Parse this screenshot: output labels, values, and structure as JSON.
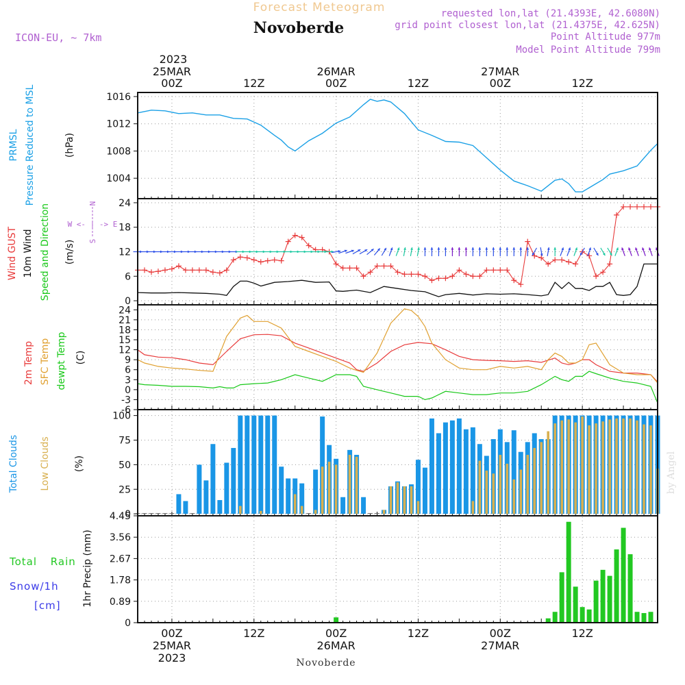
{
  "header": {
    "title": "Forecast Meteogram",
    "location": "Novoberde",
    "model": "ICON-EU, ~ 7km",
    "requested": "requested lon,lat (21.4393E, 42.6080N)",
    "gridpoint": "grid point closest lon,lat (21.4375E, 42.625N)",
    "point_alt": "Point Altitude 977m",
    "model_alt": "Model Point Altitude 799m",
    "footer": "Novoberde",
    "credit": "by Angel"
  },
  "colors": {
    "pressure": "#1aa0e6",
    "gust": "#e83a3a",
    "wind": "#111111",
    "arrows_blue": "#2a4ee8",
    "arrows_green": "#18c8a0",
    "arrows_purple": "#7a18c8",
    "temp": "#e83a3a",
    "sfc": "#e0a030",
    "dewpt": "#18c818",
    "total_clouds": "#1a96e6",
    "low_clouds": "#d8b050",
    "rain": "#22c822",
    "snow": "#3a3ae8",
    "label_purple": "#b060d0",
    "title_orange": "#f0c890"
  },
  "time_axis": {
    "top_year": "2023",
    "bottom_year": "2023",
    "ticks": [
      {
        "hour": 0,
        "label": "00Z",
        "date": "25MAR"
      },
      {
        "hour": 12,
        "label": "12Z",
        "date": ""
      },
      {
        "hour": 24,
        "label": "00Z",
        "date": "26MAR"
      },
      {
        "hour": 36,
        "label": "12Z",
        "date": ""
      },
      {
        "hour": 48,
        "label": "00Z",
        "date": "27MAR"
      },
      {
        "hour": 60,
        "label": "12Z",
        "date": ""
      }
    ],
    "range_hours": [
      -5,
      71
    ]
  },
  "panels": {
    "pressure": {
      "labels": [
        "PRMSL",
        "Pressure Reduced to MSL"
      ],
      "unit": "(hPa)",
      "ylim": [
        1001,
        1016.6
      ],
      "yticks": [
        1004,
        1008,
        1012,
        1016
      ]
    },
    "wind": {
      "labels": [
        "Wind GUST",
        "10m Wind",
        "Speed and Direction"
      ],
      "unit": "(m/s)",
      "compass": "W <- | -> E",
      "compass_n": "N",
      "compass_s": "S",
      "ylim": [
        -1,
        25
      ],
      "yticks": [
        0,
        6,
        12,
        18,
        24
      ]
    },
    "temp": {
      "labels": [
        "2m Temp",
        "SFC Temp",
        "dewpt Temp"
      ],
      "unit": "(C)",
      "ylim": [
        -6,
        25.5
      ],
      "yticks": [
        -6,
        -3,
        0,
        3,
        6,
        9,
        12,
        15,
        18,
        21,
        24
      ]
    },
    "clouds": {
      "labels": [
        "Total Clouds",
        "Low Clouds"
      ],
      "unit": "(%)",
      "ylim": [
        -2,
        106
      ],
      "yticks": [
        0,
        25,
        50,
        75,
        100
      ]
    },
    "precip": {
      "labels": [
        "Total Rain",
        "Snow/1h",
        "[cm]"
      ],
      "unit": "1hr Precip (mm)",
      "ylim": [
        0,
        4.45
      ],
      "yticks": [
        "0",
        "0.89",
        "1.78",
        "2.67",
        "3.56",
        "4.45"
      ]
    }
  },
  "chart_data": {
    "type": "line",
    "title": "Forecast Meteogram - Novoberde",
    "x_unit": "hours since 2023-03-25 00Z",
    "pressure": {
      "name": "PRMSL (hPa)",
      "x": [
        -5,
        -3,
        -1,
        1,
        3,
        5,
        7,
        9,
        11,
        13,
        15,
        16,
        17,
        18,
        20,
        22,
        24,
        26,
        28,
        29,
        30,
        31,
        32,
        34,
        36,
        38,
        40,
        42,
        44,
        46,
        48,
        50,
        52,
        54,
        56,
        57,
        58,
        59,
        60,
        61,
        62,
        63,
        64,
        66,
        68,
        70,
        71
      ],
      "y": [
        1013.6,
        1014.0,
        1013.9,
        1013.5,
        1013.6,
        1013.3,
        1013.3,
        1012.8,
        1012.7,
        1011.8,
        1010.3,
        1009.6,
        1008.6,
        1008.0,
        1009.5,
        1010.6,
        1012.1,
        1013.0,
        1014.8,
        1015.6,
        1015.3,
        1015.5,
        1015.2,
        1013.5,
        1011.1,
        1010.3,
        1009.4,
        1009.3,
        1008.8,
        1007.0,
        1005.2,
        1003.6,
        1002.9,
        1002.1,
        1003.7,
        1003.9,
        1003.2,
        1002.0,
        1002.0,
        1002.6,
        1003.2,
        1003.8,
        1004.6,
        1005.1,
        1005.8,
        1008.1,
        1009.1
      ]
    },
    "wind_gust": {
      "name": "Wind GUST (m/s)",
      "x": [
        -5,
        -4,
        -3,
        -2,
        -1,
        0,
        1,
        2,
        3,
        4,
        5,
        6,
        7,
        8,
        9,
        10,
        11,
        12,
        13,
        14,
        15,
        16,
        17,
        18,
        19,
        20,
        21,
        22,
        23,
        24,
        25,
        26,
        27,
        28,
        29,
        30,
        31,
        32,
        33,
        34,
        35,
        36,
        37,
        38,
        39,
        40,
        41,
        42,
        43,
        44,
        45,
        46,
        47,
        48,
        49,
        50,
        51,
        52,
        53,
        54,
        55,
        56,
        57,
        58,
        59,
        60,
        61,
        62,
        63,
        64,
        65,
        66,
        67,
        68,
        69,
        70,
        71
      ],
      "y": [
        7.5,
        7.5,
        7.0,
        7.2,
        7.5,
        7.8,
        8.5,
        7.5,
        7.5,
        7.5,
        7.5,
        7.0,
        6.8,
        7.5,
        10.0,
        10.7,
        10.5,
        10.0,
        9.5,
        9.8,
        10.0,
        9.8,
        14.5,
        16.0,
        15.5,
        13.5,
        12.5,
        12.5,
        12.0,
        9.0,
        8.0,
        8.0,
        8.0,
        6.0,
        7.0,
        8.5,
        8.5,
        8.5,
        7.0,
        6.5,
        6.5,
        6.5,
        6.0,
        5.0,
        5.5,
        5.5,
        6.0,
        7.5,
        6.5,
        6.0,
        6.0,
        7.5,
        7.5,
        7.5,
        7.5,
        5.0,
        4.0,
        14.5,
        11.0,
        10.5,
        9.0,
        10.0,
        10.0,
        9.5,
        9.0,
        12.0,
        11.0,
        6.0,
        7.0,
        9.0,
        21.0,
        23.0,
        23.0,
        23.0,
        23.0,
        23.0,
        23.0
      ]
    },
    "wind_speed": {
      "name": "10m Wind (m/s)",
      "x": [
        -5,
        -3,
        -1,
        1,
        3,
        5,
        7,
        8,
        9,
        10,
        11,
        12,
        13,
        15,
        17,
        19,
        21,
        23,
        24,
        25,
        27,
        29,
        31,
        33,
        35,
        37,
        39,
        40,
        42,
        44,
        46,
        48,
        50,
        52,
        54,
        55,
        56,
        57,
        58,
        59,
        60,
        61,
        62,
        63,
        64,
        65,
        66,
        67,
        68,
        69,
        70,
        71
      ],
      "y": [
        2.0,
        1.9,
        1.9,
        2.0,
        1.9,
        1.8,
        1.6,
        1.3,
        3.5,
        4.8,
        4.8,
        4.3,
        3.6,
        4.5,
        4.7,
        5.0,
        4.5,
        4.6,
        2.4,
        2.3,
        2.6,
        2.0,
        3.5,
        3.0,
        2.5,
        2.2,
        1.0,
        1.5,
        1.8,
        1.4,
        1.7,
        1.6,
        1.7,
        1.5,
        1.2,
        1.5,
        4.5,
        3.0,
        4.5,
        3.0,
        3.0,
        2.5,
        3.5,
        3.5,
        4.5,
        1.5,
        1.3,
        1.5,
        3.5,
        9.0,
        9.0,
        9.0
      ]
    },
    "temp_2m": {
      "name": "2m Temp (C)",
      "x": [
        -5,
        -4,
        -2,
        0,
        2,
        4,
        6,
        8,
        10,
        12,
        14,
        16,
        18,
        20,
        22,
        24,
        26,
        27,
        28,
        30,
        32,
        34,
        36,
        38,
        40,
        42,
        44,
        46,
        48,
        50,
        52,
        54,
        56,
        57,
        58,
        59,
        60,
        61,
        62,
        64,
        66,
        68,
        70,
        71
      ],
      "y": [
        12.0,
        10.5,
        9.8,
        9.6,
        9.0,
        8.0,
        7.5,
        11.5,
        15.3,
        16.5,
        16.6,
        16.2,
        14.0,
        12.5,
        11.0,
        9.5,
        8.0,
        6.0,
        5.5,
        8.0,
        11.5,
        13.5,
        14.2,
        13.8,
        12.0,
        10.0,
        9.0,
        8.8,
        8.7,
        8.5,
        8.7,
        8.2,
        9.5,
        8.0,
        7.5,
        8.0,
        9.0,
        9.0,
        7.5,
        5.5,
        5.0,
        5.0,
        4.5,
        2.3
      ]
    },
    "temp_sfc": {
      "name": "SFC Temp (C)",
      "x": [
        -5,
        -4,
        -2,
        0,
        2,
        4,
        6,
        8,
        10,
        11,
        12,
        14,
        16,
        18,
        20,
        22,
        24,
        26,
        27,
        28,
        30,
        32,
        34,
        35,
        36,
        37,
        38,
        40,
        42,
        44,
        46,
        48,
        50,
        52,
        54,
        55,
        56,
        57,
        58,
        59,
        60,
        61,
        62,
        64,
        66,
        68,
        70,
        71
      ],
      "y": [
        9.0,
        8.0,
        7.0,
        6.5,
        6.2,
        5.8,
        5.5,
        16.0,
        21.5,
        22.3,
        20.5,
        20.5,
        18.5,
        13.0,
        11.5,
        10.0,
        8.5,
        6.5,
        5.8,
        5.2,
        11.0,
        20.0,
        24.3,
        23.8,
        22.0,
        19.0,
        14.0,
        9.0,
        6.5,
        6.0,
        6.0,
        7.0,
        6.5,
        7.0,
        6.0,
        9.0,
        11.0,
        10.0,
        8.0,
        8.0,
        9.0,
        13.5,
        14.0,
        7.5,
        5.0,
        4.5,
        4.5,
        2.0
      ]
    },
    "temp_dew": {
      "name": "dewpt Temp (C)",
      "x": [
        -5,
        -4,
        -2,
        0,
        2,
        4,
        6,
        7,
        8,
        9,
        10,
        12,
        14,
        16,
        18,
        20,
        22,
        23,
        24,
        26,
        27,
        28,
        30,
        32,
        34,
        36,
        37,
        38,
        40,
        42,
        44,
        46,
        48,
        50,
        52,
        54,
        56,
        57,
        58,
        59,
        60,
        61,
        62,
        64,
        66,
        68,
        70,
        71
      ],
      "y": [
        1.8,
        1.5,
        1.3,
        1.0,
        1.0,
        0.9,
        0.5,
        0.9,
        0.5,
        0.5,
        1.5,
        1.8,
        2.0,
        3.0,
        4.5,
        3.5,
        2.5,
        3.5,
        4.5,
        4.5,
        4.0,
        1.0,
        0.0,
        -1.0,
        -2.0,
        -2.0,
        -3.0,
        -2.5,
        -0.5,
        -1.0,
        -1.5,
        -1.5,
        -1.0,
        -1.0,
        -0.5,
        1.5,
        4.0,
        3.0,
        2.5,
        4.0,
        4.0,
        5.5,
        4.8,
        3.5,
        2.5,
        2.0,
        1.0,
        -4.0
      ]
    },
    "clouds_total": {
      "name": "Total Clouds (%)",
      "x": [
        -5,
        -4,
        -3,
        -2,
        -1,
        0,
        1,
        2,
        3,
        4,
        5,
        6,
        7,
        8,
        9,
        10,
        11,
        12,
        13,
        14,
        15,
        16,
        17,
        18,
        19,
        20,
        21,
        22,
        23,
        24,
        25,
        26,
        27,
        28,
        29,
        30,
        31,
        32,
        33,
        34,
        35,
        36,
        37,
        38,
        39,
        40,
        41,
        42,
        43,
        44,
        45,
        46,
        47,
        48,
        49,
        50,
        51,
        52,
        53,
        54,
        55,
        56,
        57,
        58,
        59,
        60,
        61,
        62,
        63,
        64,
        65,
        66,
        67,
        68,
        69,
        70,
        71
      ],
      "values": [
        0,
        0,
        0,
        0,
        0,
        0,
        20,
        13,
        0,
        50,
        34,
        71,
        14,
        52,
        67,
        100,
        100,
        100,
        100,
        100,
        100,
        48,
        36,
        36,
        31,
        0,
        45,
        99,
        70,
        56,
        17,
        65,
        60,
        17,
        0,
        0,
        4,
        28,
        33,
        28,
        30,
        55,
        47,
        97,
        82,
        93,
        95,
        97,
        86,
        88,
        71,
        59,
        76,
        86,
        73,
        85,
        63,
        73,
        82,
        76,
        76,
        100,
        100,
        100,
        100,
        100,
        100,
        100,
        100,
        100,
        100,
        100,
        100,
        100,
        100,
        100,
        100
      ]
    },
    "clouds_low": {
      "name": "Low Clouds (%)",
      "x": [
        -5,
        -4,
        -3,
        -2,
        -1,
        0,
        1,
        2,
        3,
        4,
        5,
        6,
        7,
        8,
        9,
        10,
        11,
        12,
        13,
        14,
        15,
        16,
        17,
        18,
        19,
        20,
        21,
        22,
        23,
        24,
        25,
        26,
        27,
        28,
        29,
        30,
        31,
        32,
        33,
        34,
        35,
        36,
        37,
        38,
        39,
        40,
        41,
        42,
        43,
        44,
        45,
        46,
        47,
        48,
        49,
        50,
        51,
        52,
        53,
        54,
        55,
        56,
        57,
        58,
        59,
        60,
        61,
        62,
        63,
        64,
        65,
        66,
        67,
        68,
        69,
        70,
        71
      ],
      "values": [
        0,
        0,
        0,
        0,
        0,
        0,
        0,
        0,
        0,
        0,
        0,
        0,
        0,
        0,
        0,
        8,
        0,
        0,
        3,
        0,
        0,
        0,
        0,
        20,
        8,
        0,
        4,
        48,
        53,
        50,
        0,
        60,
        58,
        0,
        0,
        0,
        4,
        28,
        32,
        28,
        28,
        13,
        0,
        0,
        0,
        0,
        0,
        0,
        0,
        13,
        54,
        44,
        41,
        60,
        51,
        35,
        45,
        60,
        67,
        73,
        84,
        92,
        95,
        96,
        93,
        99,
        90,
        92,
        94,
        96,
        97,
        97,
        97,
        95,
        91,
        90,
        46
      ]
    },
    "precip_rain": {
      "name": "Total Rain (mm/h)",
      "x": [
        24,
        55,
        56,
        57,
        58,
        59,
        60,
        61,
        62,
        63,
        64,
        65,
        66,
        67,
        68,
        69,
        70,
        71
      ],
      "values": [
        0.22,
        0.18,
        0.45,
        2.1,
        4.2,
        1.5,
        0.65,
        0.55,
        1.75,
        2.2,
        1.95,
        3.05,
        3.95,
        2.85,
        0.45,
        0.4,
        0.45,
        0
      ]
    },
    "snow": {
      "name": "Snow/1h (cm)",
      "x": [],
      "values": []
    },
    "wind_arrows": {
      "name": "10m wind direction",
      "x": [
        -5,
        -4,
        -3,
        -2,
        -1,
        0,
        1,
        2,
        3,
        4,
        5,
        6,
        7,
        8,
        9,
        10,
        11,
        12,
        13,
        14,
        15,
        16,
        17,
        18,
        19,
        20,
        21,
        22,
        23,
        24,
        25,
        26,
        27,
        28,
        29,
        30,
        31,
        32,
        33,
        34,
        35,
        36,
        37,
        38,
        39,
        40,
        41,
        42,
        43,
        44,
        45,
        46,
        47,
        48,
        49,
        50,
        51,
        52,
        53,
        54,
        55,
        56,
        57,
        58,
        59,
        60,
        61,
        62,
        63,
        64,
        65,
        66,
        67,
        68,
        69,
        70,
        71
      ],
      "dir_deg": [
        270,
        270,
        270,
        270,
        270,
        270,
        270,
        270,
        270,
        270,
        270,
        270,
        270,
        270,
        270,
        270,
        270,
        270,
        270,
        270,
        270,
        270,
        270,
        270,
        270,
        270,
        270,
        270,
        270,
        260,
        250,
        250,
        240,
        240,
        230,
        220,
        210,
        200,
        200,
        190,
        190,
        190,
        180,
        180,
        180,
        180,
        180,
        180,
        180,
        180,
        180,
        180,
        180,
        180,
        180,
        180,
        180,
        180,
        30,
        350,
        190,
        180,
        200,
        200,
        200,
        30,
        200,
        330,
        330,
        330,
        200,
        160,
        160,
        160,
        160,
        160,
        160
      ]
    }
  }
}
